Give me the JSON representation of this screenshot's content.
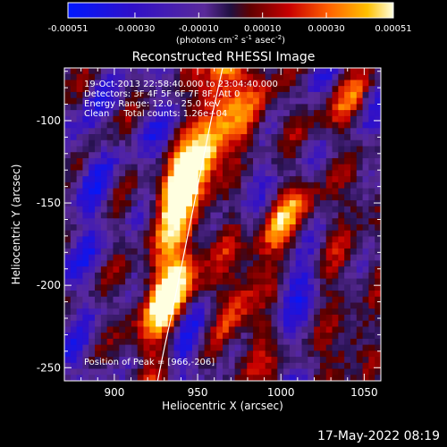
{
  "chart_data": {
    "type": "heatmap",
    "title": "Reconstructed RHESSI Image",
    "xlabel": "Heliocentric X (arcsec)",
    "ylabel": "Heliocentric Y (arcsec)",
    "xlim": [
      870,
      1060
    ],
    "ylim": [
      -258,
      -68
    ],
    "x_ticks": [
      900,
      950,
      1000,
      1050
    ],
    "y_ticks": [
      -250,
      -200,
      -150,
      -100
    ],
    "colorbar": {
      "label_text": "(photons cm",
      "label_exp1": "-2",
      "label_mid": " s",
      "label_exp2": "-1",
      "label_mid2": " asec",
      "label_exp3": "-2",
      "label_end": ")",
      "range": [
        -0.00051,
        0.00051
      ],
      "tick_values": [
        -0.00051,
        -0.0003,
        -0.0001,
        0.0001,
        0.0003,
        0.00051
      ],
      "tick_labels": [
        "-0.00051",
        "-0.00030",
        "-0.00010",
        "0.00010",
        "0.00030",
        "0.00051"
      ]
    },
    "annotations": {
      "time_range": "19-Oct-2013 22:58:40.000 to 23:04:40.000",
      "detectors": "Detectors: 3F 4F 5F 6F 7F 8F, Att 0",
      "energy": "Energy Range: 12.0 - 25.0 keV",
      "method": "Clean     Total counts: 1.26e+04",
      "peak": "Position of Peak = [966,-206]"
    },
    "limb_x": [
      965,
      958,
      952,
      946,
      940,
      935,
      930,
      926
    ],
    "limb_y": [
      -68,
      -100,
      -130,
      -160,
      -190,
      -215,
      -238,
      -258
    ],
    "pixel_grid": {
      "nx": 52,
      "ny": 52,
      "seed": 7
    }
  },
  "footer": {
    "timestamp": "17-May-2022 08:19"
  }
}
